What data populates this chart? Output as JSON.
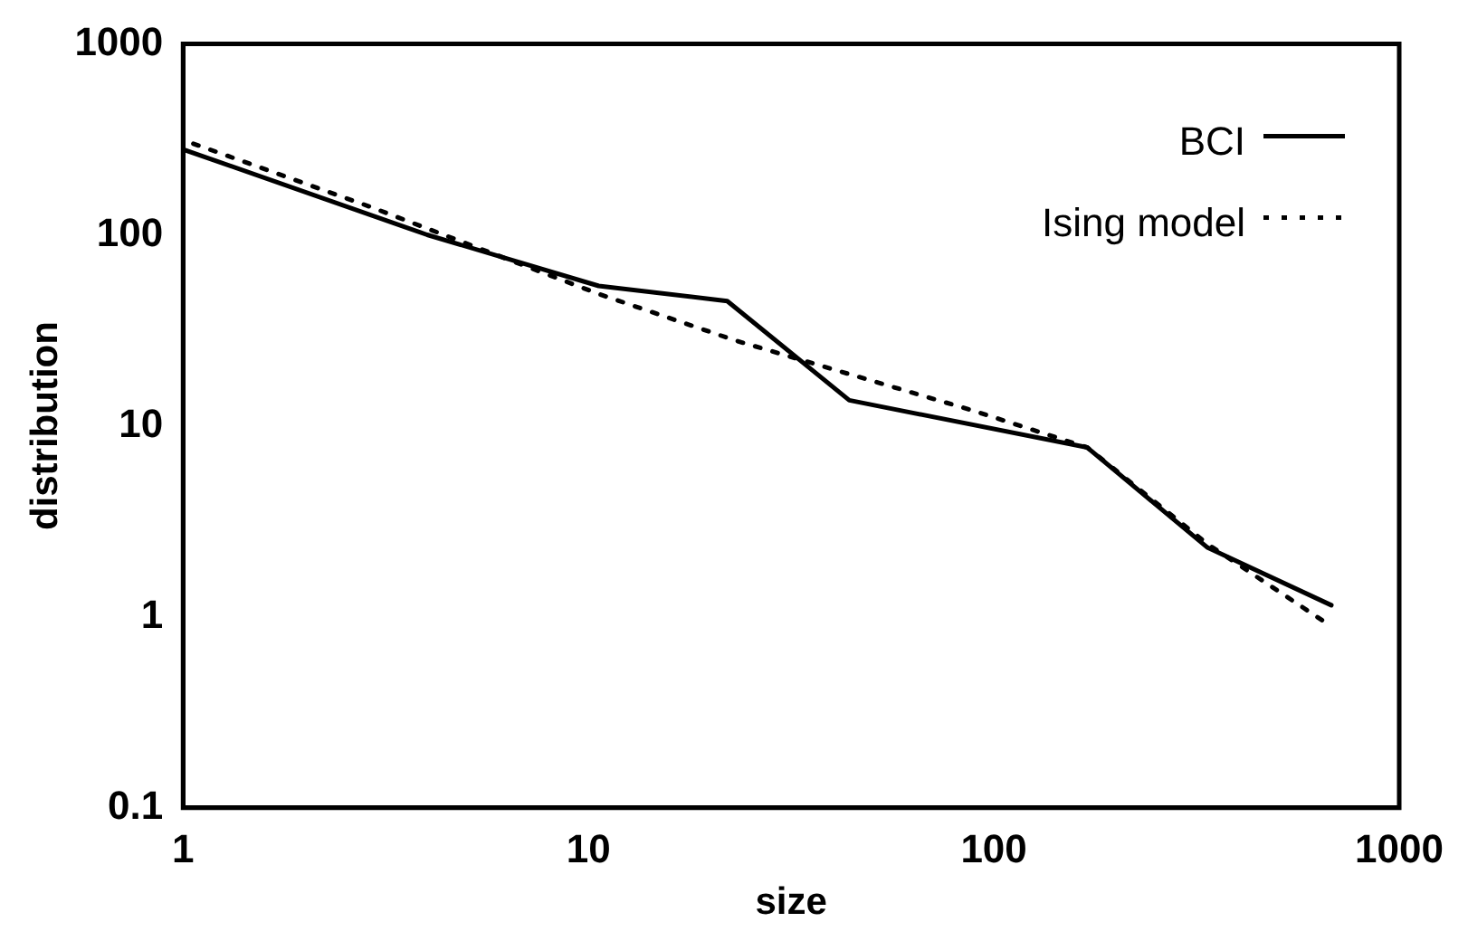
{
  "chart_data": {
    "type": "line",
    "xlabel": "size",
    "ylabel": "distribution",
    "log": "xy",
    "xlim": [
      1,
      1000
    ],
    "ylim": [
      0.1,
      1000
    ],
    "xticks": [
      1,
      10,
      100,
      1000
    ],
    "yticks": [
      0.1,
      1,
      10,
      100,
      1000
    ],
    "grid": false,
    "legend": "top right",
    "marker": "none",
    "series": [
      {
        "name": "BCI",
        "color": "#000000",
        "line_style": "solid",
        "x": [
          1,
          4,
          10.6,
          22,
          44,
          170,
          337,
          680
        ],
        "values": [
          280,
          100,
          54,
          45,
          13.6,
          7.7,
          2.3,
          1.15
        ]
      },
      {
        "name": "Ising model",
        "color": "#000000",
        "line_style": "dotted",
        "x": [
          1.06,
          2.9,
          10.6,
          23,
          89,
          170,
          337,
          650
        ],
        "values": [
          300,
          140,
          49,
          28,
          12,
          7.7,
          2.4,
          0.95
        ]
      }
    ]
  }
}
